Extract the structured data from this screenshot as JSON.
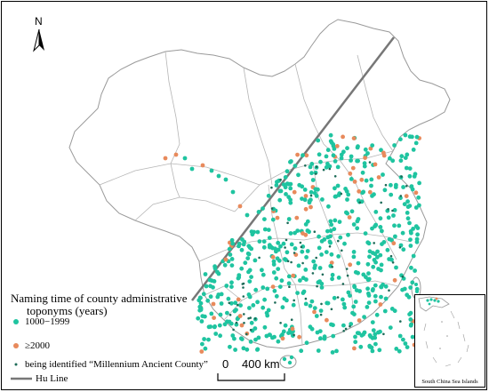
{
  "map": {
    "north_label": "N",
    "legend": {
      "title_line1": "Naming time of county administrative",
      "title_line2": "toponyms (years)",
      "items": [
        {
          "label": "1000−1999",
          "color": "#1fc4a0",
          "symbol": "dot"
        },
        {
          "label": "≥2000",
          "color": "#e88a5c",
          "symbol": "dot"
        },
        {
          "label": "being identified “Millennium Ancient County”",
          "color": "#1d6b58",
          "symbol": "small-dot"
        },
        {
          "label": "Hu Line",
          "color": "#777777",
          "symbol": "line"
        }
      ]
    },
    "scale_bar": {
      "zero": "0",
      "distance": "400 km"
    },
    "inset_caption": "South China Sea Islands",
    "colors": {
      "green": "#1fc4a0",
      "orange": "#e88a5c",
      "dark": "#1d6b58",
      "boundary": "#9a9a9a",
      "hu_line": "#777777"
    },
    "icons": [
      "north-arrow-icon"
    ]
  }
}
